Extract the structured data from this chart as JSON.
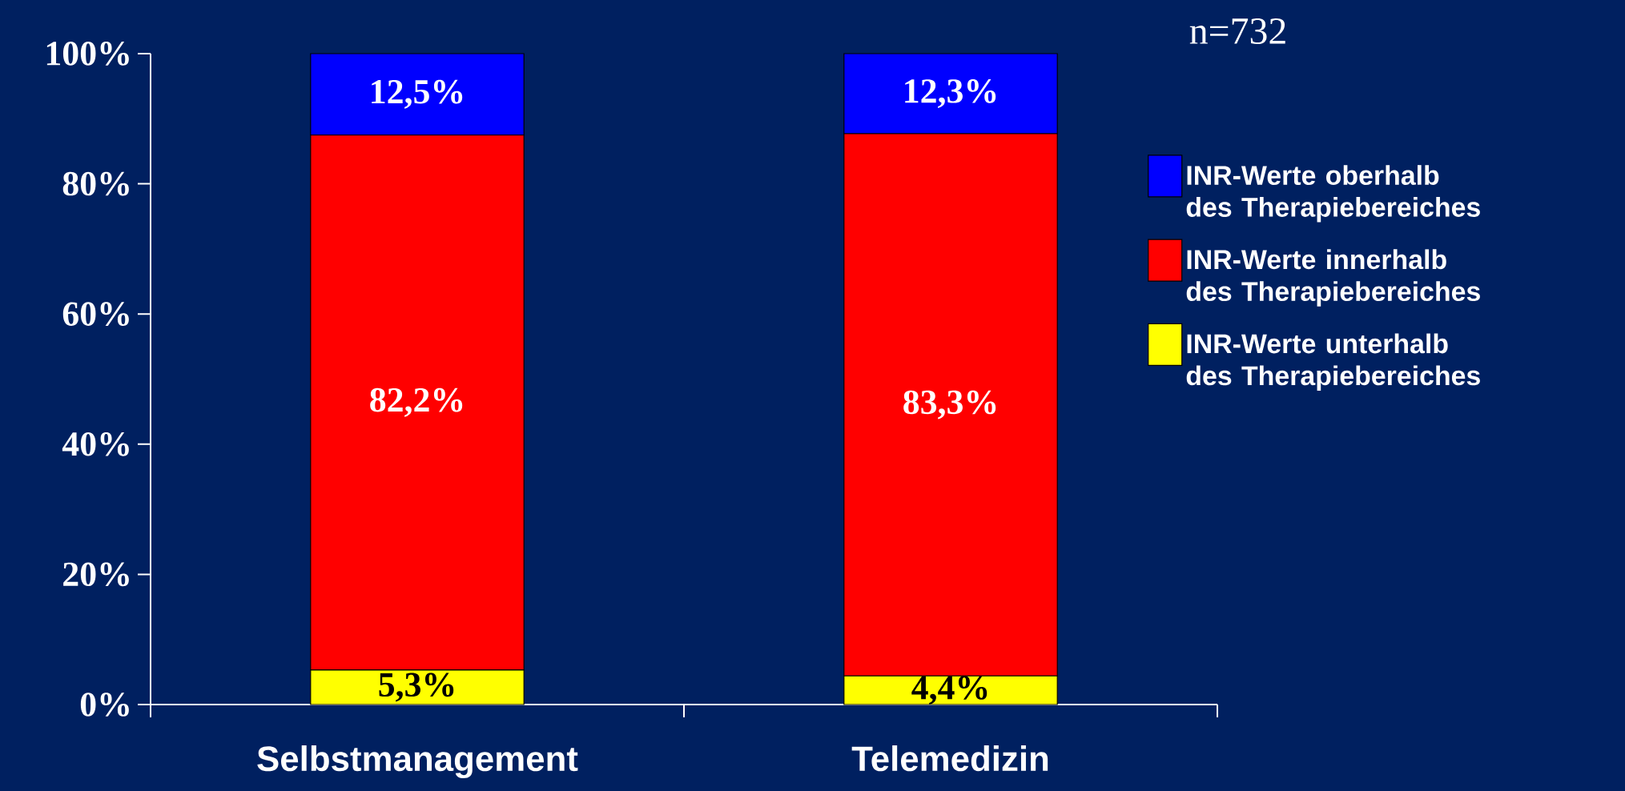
{
  "chart_data": {
    "type": "bar",
    "stacked": true,
    "categories": [
      "Selbstmanagement",
      "Telemedizin"
    ],
    "series": [
      {
        "name": "INR-Werte unterhalb des Therapiebereiches",
        "color": "#ffff00",
        "values": [
          5.3,
          4.4
        ],
        "value_labels": [
          "5,3%",
          "4,4%"
        ]
      },
      {
        "name": "INR-Werte innerhalb des Therapiebereiches",
        "color": "#ff0000",
        "values": [
          82.2,
          83.3
        ],
        "value_labels": [
          "82,2%",
          "83,3%"
        ]
      },
      {
        "name": "INR-Werte oberhalb des Therapiebereiches",
        "color": "#0000ff",
        "values": [
          12.5,
          12.3
        ],
        "value_labels": [
          "12,5%",
          "12,3%"
        ]
      }
    ],
    "ylim": [
      0,
      100
    ],
    "yticks": [
      {
        "value": 0,
        "label": "0%"
      },
      {
        "value": 20,
        "label": "20%"
      },
      {
        "value": 40,
        "label": "40%"
      },
      {
        "value": 60,
        "label": "60%"
      },
      {
        "value": 80,
        "label": "80%"
      },
      {
        "value": 100,
        "label": "100%"
      }
    ],
    "legend": "right",
    "grid": false,
    "annotations": [
      "n=732"
    ]
  }
}
